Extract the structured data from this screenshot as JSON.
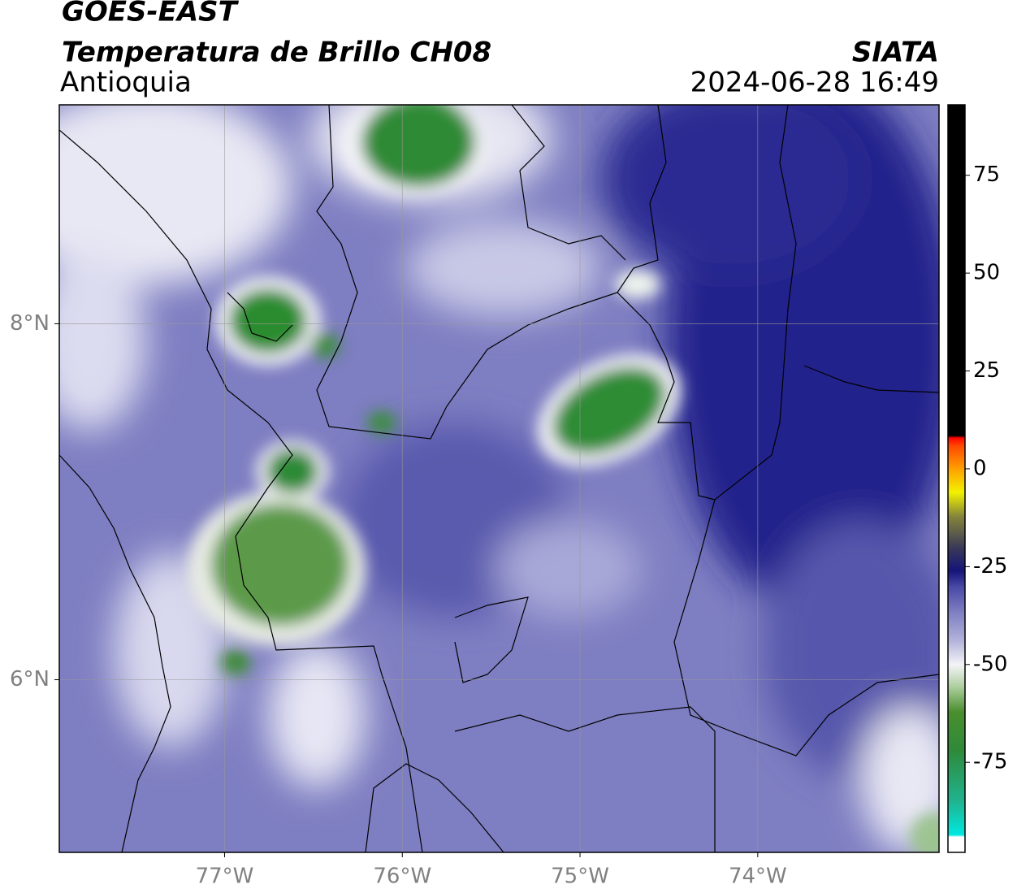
{
  "chart_data": {
    "type": "map",
    "title": "GOES-EAST",
    "subtitle": "Temperatura de Brillo CH08",
    "region": "Antioquia",
    "source": "SIATA",
    "datetime": "2024-06-28 16:49",
    "xlim": [
      -77.93,
      -72.98
    ],
    "ylim": [
      5.03,
      9.23
    ],
    "xticks": [
      {
        "value": -77,
        "label": "77°W"
      },
      {
        "value": -76,
        "label": "76°W"
      },
      {
        "value": -75,
        "label": "75°W"
      },
      {
        "value": -74,
        "label": "74°W"
      }
    ],
    "yticks": [
      {
        "value": 6,
        "label": "6°N"
      },
      {
        "value": 8,
        "label": "8°N"
      }
    ],
    "grid": true,
    "colorbar": {
      "lim": [
        -98,
        93
      ],
      "ticks": [
        -75,
        -50,
        -25,
        0,
        25,
        50,
        75
      ],
      "colormap": [
        {
          "value": -98,
          "color": "#ffffff"
        },
        {
          "value": -94,
          "color": "#ffffff"
        },
        {
          "value": -93.5,
          "color": "#00e8e0"
        },
        {
          "value": -85,
          "color": "#20b490"
        },
        {
          "value": -72,
          "color": "#2e8a3a"
        },
        {
          "value": -62,
          "color": "#4a8e2e"
        },
        {
          "value": -56,
          "color": "#a8cc98"
        },
        {
          "value": -50,
          "color": "#f4f4f8"
        },
        {
          "value": -44,
          "color": "#b4b4dc"
        },
        {
          "value": -36,
          "color": "#7a7ac0"
        },
        {
          "value": -30,
          "color": "#4848a6"
        },
        {
          "value": -26,
          "color": "#14147a"
        },
        {
          "value": -20,
          "color": "#3a3a58"
        },
        {
          "value": -12,
          "color": "#86863a"
        },
        {
          "value": -6,
          "color": "#f2f200"
        },
        {
          "value": 0,
          "color": "#ffa000"
        },
        {
          "value": 6,
          "color": "#ff4800"
        },
        {
          "value": 8,
          "color": "#ff0000"
        },
        {
          "value": 8.5,
          "color": "#000000"
        },
        {
          "value": 93,
          "color": "#000000"
        }
      ]
    }
  }
}
